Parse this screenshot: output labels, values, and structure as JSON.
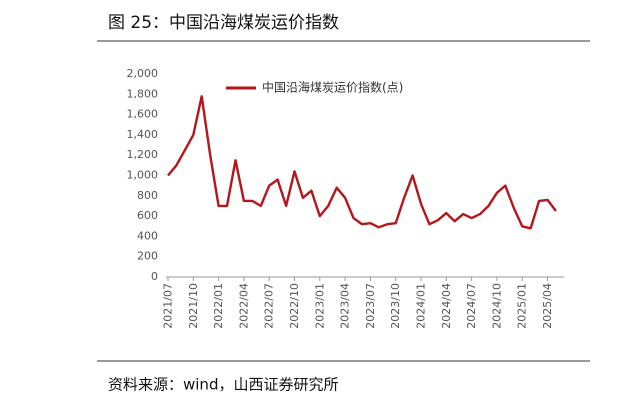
{
  "chart_data": {
    "type": "line",
    "title": "图 25：中国沿海煤炭运价指数",
    "source": "资料来源：wind，山西证券研究所",
    "x": [
      "2021/07",
      "2021/08",
      "2021/09",
      "2021/10",
      "2021/11",
      "2021/12",
      "2022/01",
      "2022/02",
      "2022/03",
      "2022/04",
      "2022/05",
      "2022/06",
      "2022/07",
      "2022/08",
      "2022/09",
      "2022/10",
      "2022/11",
      "2022/12",
      "2023/01",
      "2023/02",
      "2023/03",
      "2023/04",
      "2023/05",
      "2023/06",
      "2023/07",
      "2023/08",
      "2023/09",
      "2023/10",
      "2023/11",
      "2023/12",
      "2024/01",
      "2024/02",
      "2024/03",
      "2024/04",
      "2024/05",
      "2024/06",
      "2024/07",
      "2024/08",
      "2024/09",
      "2024/10",
      "2024/11",
      "2024/12",
      "2025/01",
      "2025/02",
      "2025/03",
      "2025/04",
      "2025/05"
    ],
    "series": [
      {
        "name": "中国沿海煤炭运价指数(点)",
        "color": "#b5161b",
        "values": [
          1000,
          1100,
          1250,
          1400,
          1780,
          1200,
          700,
          700,
          1150,
          750,
          750,
          700,
          900,
          960,
          700,
          1040,
          780,
          850,
          600,
          700,
          880,
          780,
          580,
          520,
          530,
          490,
          520,
          530,
          780,
          1000,
          720,
          520,
          560,
          630,
          550,
          620,
          580,
          620,
          700,
          830,
          900,
          680,
          500,
          480,
          750,
          760,
          650
        ]
      }
    ],
    "xticks": [
      "2021/07",
      "2021/10",
      "2022/01",
      "2022/04",
      "2022/07",
      "2022/10",
      "2023/01",
      "2023/04",
      "2023/07",
      "2023/10",
      "2024/01",
      "2024/04",
      "2024/07",
      "2024/10",
      "2025/01",
      "2025/04"
    ],
    "ylim": [
      0,
      2000
    ],
    "yticks": [
      0,
      200,
      400,
      600,
      800,
      {
        "value": 1000,
        "label": "1,000"
      },
      {
        "value": 1200,
        "label": "1,200"
      },
      {
        "value": 1400,
        "label": "1,400"
      },
      {
        "value": 1600,
        "label": "1,600"
      },
      {
        "value": 1800,
        "label": "1,800"
      },
      {
        "value": 2000,
        "label": "2,000"
      }
    ],
    "grid": false,
    "legend": "top"
  }
}
